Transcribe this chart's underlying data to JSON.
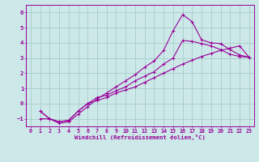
{
  "title": "",
  "xlabel": "Windchill (Refroidissement éolien,°C)",
  "ylabel": "",
  "bg_color": "#cce8e8",
  "line_color": "#990099",
  "grid_color": "#aacccc",
  "xlim": [
    -0.5,
    23.5
  ],
  "ylim": [
    -1.5,
    6.5
  ],
  "yticks": [
    -1,
    0,
    1,
    2,
    3,
    4,
    5,
    6
  ],
  "xticks": [
    0,
    1,
    2,
    3,
    4,
    5,
    6,
    7,
    8,
    9,
    10,
    11,
    12,
    13,
    14,
    15,
    16,
    17,
    18,
    19,
    20,
    21,
    22,
    23
  ],
  "line_curved_x": [
    1,
    2,
    3,
    4,
    5,
    6,
    7,
    8,
    9,
    10,
    11,
    12,
    13,
    14,
    15,
    16,
    17,
    18,
    19,
    20,
    21,
    22,
    23
  ],
  "line_curved_y": [
    -1.0,
    -1.0,
    -1.3,
    -1.2,
    -0.7,
    -0.2,
    0.3,
    0.7,
    1.1,
    1.5,
    1.9,
    2.4,
    2.8,
    3.5,
    4.8,
    5.85,
    5.4,
    4.2,
    4.0,
    3.95,
    3.55,
    3.2,
    3.05
  ],
  "line_upper_x": [
    1,
    2,
    3,
    4,
    5,
    6,
    7,
    8,
    9,
    10,
    11,
    12,
    13,
    14,
    15,
    16,
    17,
    18,
    19,
    20,
    21,
    22,
    23
  ],
  "line_upper_y": [
    -0.5,
    -1.0,
    -1.2,
    -1.1,
    -0.5,
    0.0,
    0.4,
    0.55,
    0.85,
    1.1,
    1.5,
    1.8,
    2.1,
    2.6,
    3.0,
    4.15,
    4.1,
    3.95,
    3.8,
    3.55,
    3.25,
    3.1,
    3.05
  ],
  "line_lower_x": [
    1,
    2,
    3,
    4,
    5,
    6,
    7,
    8,
    9,
    10,
    11,
    12,
    13,
    14,
    15,
    16,
    17,
    18,
    19,
    20,
    21,
    22,
    23
  ],
  "line_lower_y": [
    -0.5,
    -1.0,
    -1.2,
    -1.1,
    -0.5,
    0.0,
    0.2,
    0.4,
    0.7,
    0.9,
    1.1,
    1.4,
    1.7,
    2.0,
    2.3,
    2.6,
    2.85,
    3.1,
    3.3,
    3.5,
    3.65,
    3.8,
    3.05
  ]
}
